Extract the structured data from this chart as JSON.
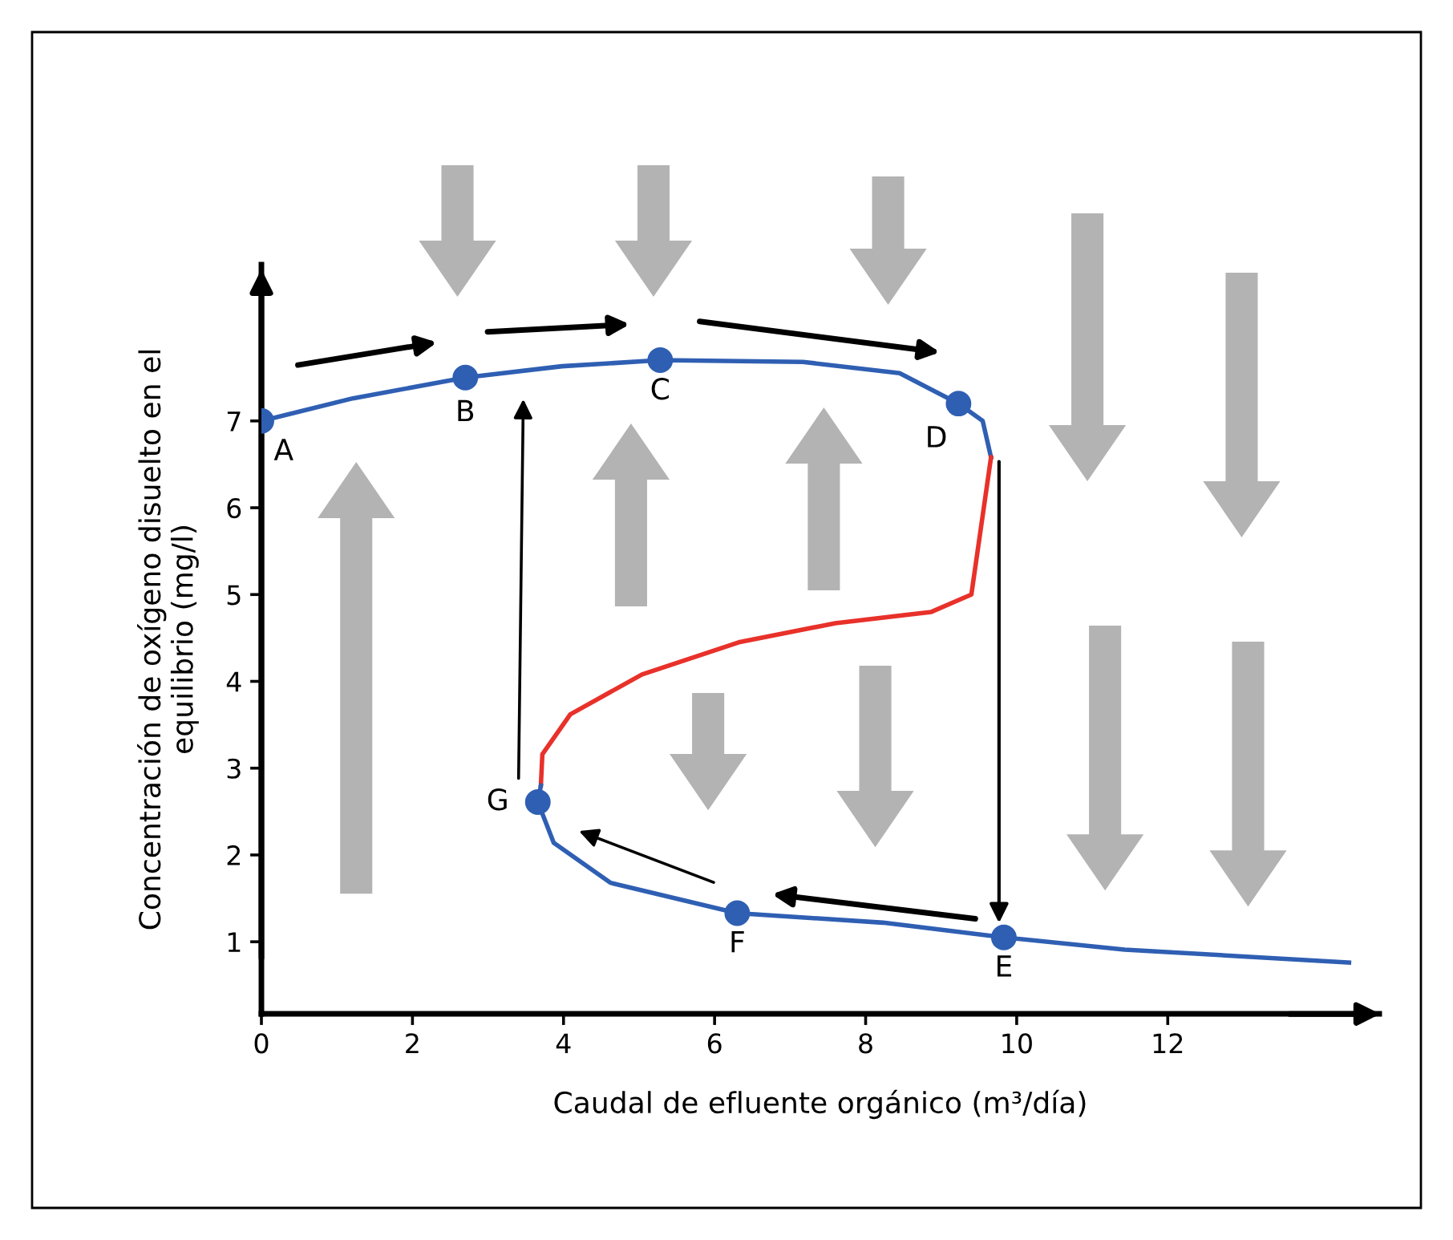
{
  "chart_data": {
    "type": "line",
    "xlabel": "Caudal de efluente orgánico (m³/día)",
    "ylabel": "Concentración de oxígeno disuelto en el\nequilibrio (mg/l)",
    "xlim": [
      0,
      14.8
    ],
    "ylim": [
      0.17,
      8.8
    ],
    "xticks": [
      0,
      2,
      4,
      6,
      8,
      10,
      12
    ],
    "yticks": [
      1,
      2,
      3,
      4,
      5,
      6,
      7
    ],
    "grid": false,
    "legend": false,
    "line_style": "solid",
    "marker": "none",
    "series": [
      {
        "color": "#2f5fb3",
        "x": [
          0,
          1.21,
          2.7,
          3.98,
          5.28,
          7.17,
          8.45,
          9.23,
          9.55,
          9.66
        ],
        "values": [
          7,
          7.26,
          7.5,
          7.63,
          7.7,
          7.68,
          7.55,
          7.2,
          7.0,
          6.58
        ]
      },
      {
        "color": "#e8312a",
        "x": [
          9.66,
          9.4,
          8.87,
          7.6,
          6.32,
          5.04,
          4.09,
          3.72,
          3.7
        ],
        "values": [
          6.58,
          5.0,
          4.8,
          4.67,
          4.45,
          4.08,
          3.62,
          3.16,
          2.8
        ]
      },
      {
        "color": "#2f5fb3",
        "x": [
          3.7,
          3.66,
          3.87,
          4.62,
          6.3,
          8.23,
          9.83,
          11.43,
          14.4
        ],
        "values": [
          2.8,
          2.61,
          2.14,
          1.68,
          1.33,
          1.22,
          1.05,
          0.91,
          0.76
        ]
      },
      {
        "type": "scatter",
        "marker": "circle",
        "color": "#2f5fb3",
        "x": [
          0,
          2.7,
          5.28,
          9.23,
          9.83,
          6.3,
          3.66
        ],
        "values": [
          7,
          7.5,
          7.7,
          7.2,
          1.05,
          1.33,
          2.61
        ]
      }
    ],
    "annotations": [
      {
        "text": "A",
        "x": 0,
        "y": 7
      },
      {
        "text": "B",
        "x": 2.7,
        "y": 7.5
      },
      {
        "text": "C",
        "x": 5.28,
        "y": 7.7
      },
      {
        "text": "D",
        "x": 9.23,
        "y": 7.2
      },
      {
        "text": "E",
        "x": 9.83,
        "y": 1.05
      },
      {
        "text": "F",
        "x": 6.3,
        "y": 1.33
      },
      {
        "text": "G",
        "x": 3.66,
        "y": 2.61
      }
    ]
  }
}
